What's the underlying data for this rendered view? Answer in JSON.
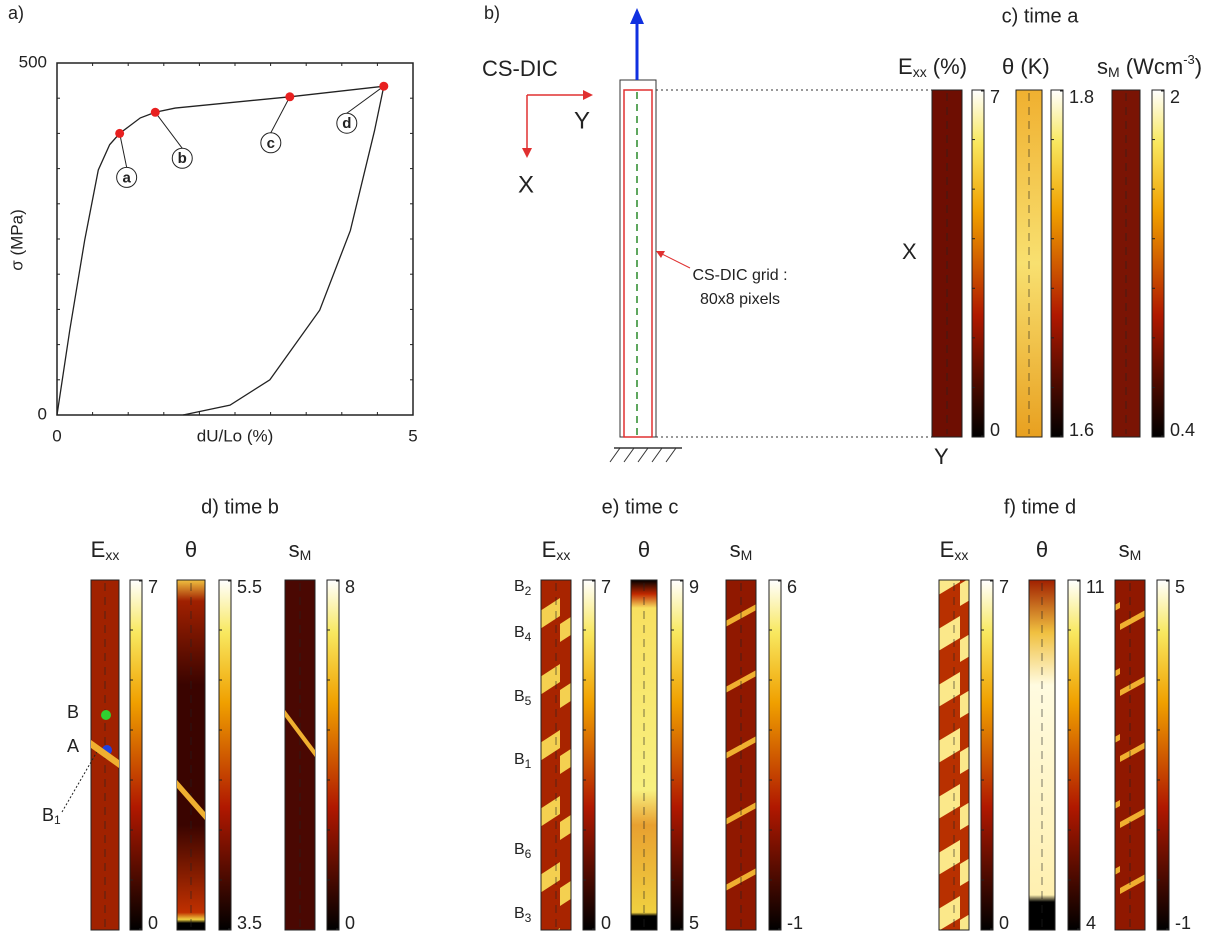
{
  "panel_a": {
    "label": "a)",
    "x_label": "dU/Lo (%)",
    "y_label": "σ (MPa)",
    "xlim": [
      0,
      5
    ],
    "ylim": [
      0,
      500
    ],
    "xticks": [
      0,
      5
    ],
    "yticks": [
      0,
      500
    ],
    "curves": [
      {
        "x": [
          0,
          0.18,
          0.39,
          0.58,
          0.74,
          0.88,
          1.17,
          1.38,
          1.66,
          3.27,
          4.59
        ],
        "y": [
          0,
          121,
          249,
          348,
          384,
          400,
          422,
          430,
          436,
          452,
          467
        ]
      },
      {
        "x": [
          4.59,
          4.46,
          4.12,
          3.69,
          2.99,
          2.43,
          1.77
        ],
        "y": [
          467,
          404,
          262,
          149,
          50,
          14,
          0
        ]
      }
    ],
    "points": [
      {
        "name": "a",
        "x": 0.88,
        "y": 400
      },
      {
        "name": "b",
        "x": 1.38,
        "y": 430
      },
      {
        "name": "c",
        "x": 3.27,
        "y": 452
      },
      {
        "name": "d",
        "x": 4.59,
        "y": 467
      }
    ]
  },
  "panel_b": {
    "label": "b)",
    "frame": "CS-DIC",
    "axis_y": "Y",
    "axis_x": "X",
    "grid_note": [
      "CS-DIC grid :",
      "80x8 pixels"
    ]
  },
  "maps": [
    {
      "title": "c) time a",
      "side_labels": [
        "X",
        "Y"
      ],
      "fields": [
        {
          "symbol": "E",
          "sub": "xx",
          "unit": " (%)",
          "max": 7,
          "min": 0
        },
        {
          "symbol": "θ",
          "unit": " (K)",
          "max": 1.8,
          "min": 1.6
        },
        {
          "symbol": "s",
          "sub": "M",
          "unit": " (Wcm",
          "unit_sup": "-3",
          "unit_end": ")",
          "max": 2,
          "min": 0.4
        }
      ]
    },
    {
      "title": "d) time b",
      "bands": [
        {
          "main": "B"
        },
        {
          "main": "A"
        },
        {
          "main": "B",
          "sub": "1"
        }
      ],
      "fields": [
        {
          "symbol": "E",
          "sub": "xx",
          "max": 7,
          "min": 0
        },
        {
          "symbol": "θ",
          "max": 5.5,
          "min": 3.5
        },
        {
          "symbol": "s",
          "sub": "M",
          "max": 8,
          "min": 0
        }
      ]
    },
    {
      "title": "e) time c",
      "bands": [
        {
          "main": "B",
          "sub": "2"
        },
        {
          "main": "B",
          "sub": "4"
        },
        {
          "main": "B",
          "sub": "5"
        },
        {
          "main": "B",
          "sub": "1"
        },
        {
          "main": "B",
          "sub": "6"
        },
        {
          "main": "B",
          "sub": "3"
        }
      ],
      "fields": [
        {
          "symbol": "E",
          "sub": "xx",
          "max": 7,
          "min": 0
        },
        {
          "symbol": "θ",
          "max": 9,
          "min": 5
        },
        {
          "symbol": "s",
          "sub": "M",
          "max": 6,
          "min": -1
        }
      ]
    },
    {
      "title": "f) time d",
      "fields": [
        {
          "symbol": "E",
          "sub": "xx",
          "max": 7,
          "min": 0
        },
        {
          "symbol": "θ",
          "max": 11,
          "min": 4
        },
        {
          "symbol": "s",
          "sub": "M",
          "max": 5,
          "min": -1
        }
      ]
    }
  ]
}
